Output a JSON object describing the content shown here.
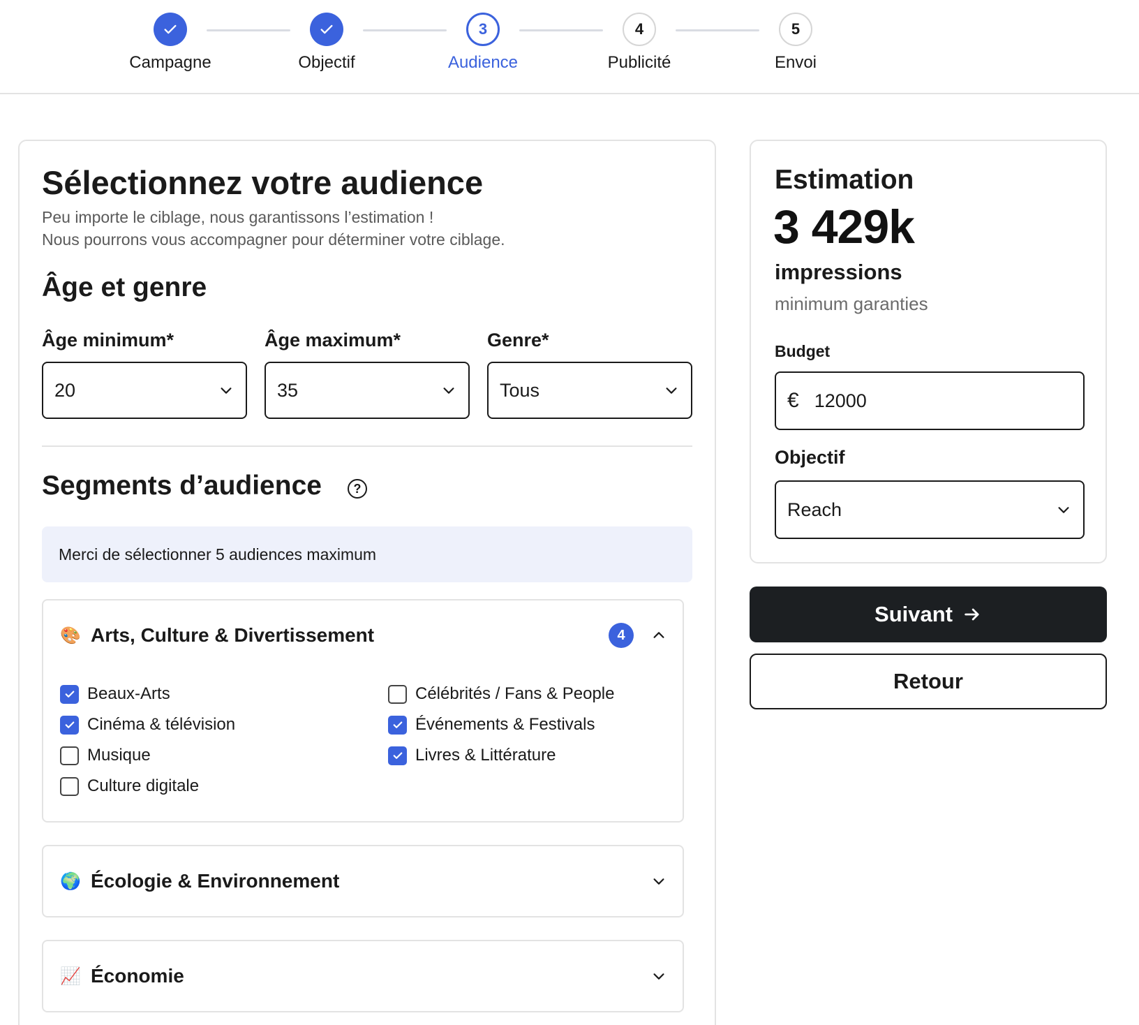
{
  "stepper": {
    "steps": [
      {
        "number": "1",
        "label": "Campagne",
        "state": "done"
      },
      {
        "number": "2",
        "label": "Objectif",
        "state": "done"
      },
      {
        "number": "3",
        "label": "Audience",
        "state": "current"
      },
      {
        "number": "4",
        "label": "Publicité",
        "state": "todo"
      },
      {
        "number": "5",
        "label": "Envoi",
        "state": "todo"
      }
    ]
  },
  "audience": {
    "title": "Sélectionnez votre audience",
    "subtitle_line1": "Peu importe le ciblage, nous garantissons l’estimation !",
    "subtitle_line2": "Nous pourrons vous accompagner pour déterminer votre ciblage.",
    "age_gender": {
      "title": "Âge et genre",
      "age_min_label": "Âge minimum*",
      "age_min_value": "20",
      "age_max_label": "Âge maximum*",
      "age_max_value": "35",
      "gender_label": "Genre*",
      "gender_value": "Tous"
    },
    "segments": {
      "title": "Segments d’audience",
      "help_icon": "question-circle-icon",
      "info": "Merci de sélectionner 5 audiences maximum",
      "categories": [
        {
          "emoji": "🎨",
          "title": "Arts, Culture & Divertissement",
          "count": "4",
          "expanded": true,
          "options": [
            {
              "label": "Beaux-Arts",
              "checked": true
            },
            {
              "label": "Célébrités / Fans & People",
              "checked": false
            },
            {
              "label": "Cinéma & télévision",
              "checked": true
            },
            {
              "label": "Événements & Festivals",
              "checked": true
            },
            {
              "label": "Musique",
              "checked": false
            },
            {
              "label": "Livres & Littérature",
              "checked": true
            },
            {
              "label": "Culture digitale",
              "checked": false
            }
          ]
        },
        {
          "emoji": "🌍",
          "title": "Écologie & Environnement",
          "expanded": false
        },
        {
          "emoji": "📈",
          "title": "Économie",
          "expanded": false
        }
      ]
    }
  },
  "estimation": {
    "title": "Estimation",
    "value": "3 429k",
    "unit": "impressions",
    "note": "minimum garanties",
    "budget_label": "Budget",
    "currency": "€",
    "budget_value": "12000",
    "objective_label": "Objectif",
    "objective_value": "Reach"
  },
  "actions": {
    "next_label": "Suivant",
    "back_label": "Retour"
  },
  "colors": {
    "accent": "#3b62dd",
    "dark_button": "#1c1f22",
    "info_bg": "#eef1fb"
  }
}
